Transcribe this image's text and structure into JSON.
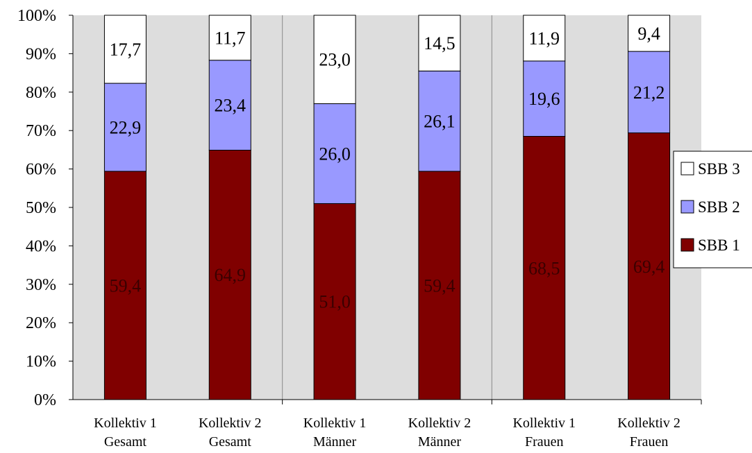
{
  "chart_data": {
    "type": "bar",
    "stacked": true,
    "categories": [
      [
        "Kollektiv 1",
        "Gesamt"
      ],
      [
        "Kollektiv 2",
        "Gesamt"
      ],
      [
        "Kollektiv 1",
        "Männer"
      ],
      [
        "Kollektiv 2",
        "Männer"
      ],
      [
        "Kollektiv 1",
        "Frauen"
      ],
      [
        "Kollektiv 2",
        "Frauen"
      ]
    ],
    "series": [
      {
        "name": "SBB 1",
        "color": "#800000",
        "label_color": "#3a0000",
        "values": [
          59.4,
          64.9,
          51.0,
          59.4,
          68.5,
          69.4
        ],
        "labels": [
          "59,4",
          "64,9",
          "51,0",
          "59,4",
          "68,5",
          "69,4"
        ]
      },
      {
        "name": "SBB 2",
        "color": "#9999ff",
        "label_color": "#000000",
        "values": [
          22.9,
          23.4,
          26.0,
          26.1,
          19.6,
          21.2
        ],
        "labels": [
          "22,9",
          "23,4",
          "26,0",
          "26,1",
          "19,6",
          "21,2"
        ]
      },
      {
        "name": "SBB 3",
        "color": "#ffffff",
        "label_color": "#000000",
        "values": [
          17.7,
          11.7,
          23.0,
          14.5,
          11.9,
          9.4
        ],
        "labels": [
          "17,7",
          "11,7",
          "23,0",
          "14,5",
          "11,9",
          "9,4"
        ]
      }
    ],
    "ylim": [
      0,
      100
    ],
    "yticks": [
      "0%",
      "10%",
      "20%",
      "30%",
      "40%",
      "50%",
      "60%",
      "70%",
      "80%",
      "90%",
      "100%"
    ],
    "plot_background": "#dddddd",
    "grid": false,
    "legend_position": "right",
    "legend_order": [
      "SBB 3",
      "SBB 2",
      "SBB 1"
    ],
    "title": "",
    "xlabel": "",
    "ylabel": ""
  }
}
